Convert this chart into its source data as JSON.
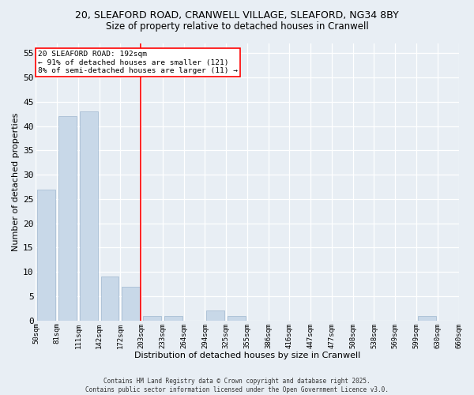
{
  "title1": "20, SLEAFORD ROAD, CRANWELL VILLAGE, SLEAFORD, NG34 8BY",
  "title2": "Size of property relative to detached houses in Cranwell",
  "xlabel": "Distribution of detached houses by size in Cranwell",
  "ylabel": "Number of detached properties",
  "bar_values": [
    27,
    42,
    43,
    9,
    7,
    1,
    1,
    0,
    2,
    1,
    0,
    0,
    0,
    0,
    0,
    0,
    0,
    0,
    1,
    0
  ],
  "tick_labels": [
    "50sqm",
    "81sqm",
    "111sqm",
    "142sqm",
    "172sqm",
    "203sqm",
    "233sqm",
    "264sqm",
    "294sqm",
    "325sqm",
    "355sqm",
    "386sqm",
    "416sqm",
    "447sqm",
    "477sqm",
    "508sqm",
    "538sqm",
    "569sqm",
    "599sqm",
    "630sqm",
    "660sqm"
  ],
  "bar_color": "#c8d8e8",
  "bar_edge_color": "#a0b8d0",
  "vline_index": 4.45,
  "annotation_text": "20 SLEAFORD ROAD: 192sqm\n← 91% of detached houses are smaller (121)\n8% of semi-detached houses are larger (11) →",
  "annotation_box_color": "white",
  "annotation_box_edge_color": "red",
  "vline_color": "red",
  "ylim": [
    0,
    57
  ],
  "yticks": [
    0,
    5,
    10,
    15,
    20,
    25,
    30,
    35,
    40,
    45,
    50,
    55
  ],
  "background_color": "#e8eef4",
  "grid_color": "#ffffff",
  "footnote": "Contains HM Land Registry data © Crown copyright and database right 2025.\nContains public sector information licensed under the Open Government Licence v3.0."
}
